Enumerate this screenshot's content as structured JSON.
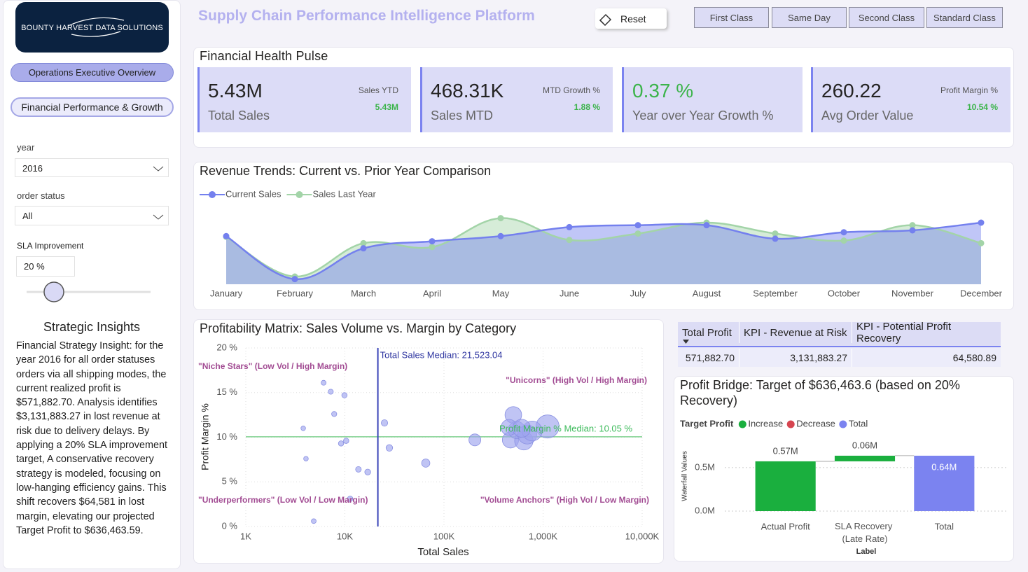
{
  "sidebar": {
    "logo": "BOUNTY HARVEST DATA SOLUTIONS",
    "nav": [
      "Operations Executive Overview",
      "Financial Performance & Growth"
    ],
    "filters": [
      {
        "label": "year",
        "value": "2016"
      },
      {
        "label": "order status",
        "value": "All"
      }
    ],
    "sla": {
      "label": "SLA Improvement",
      "value": "20 %"
    },
    "insights_title": "Strategic Insights",
    "insights_text": "Financial Strategy Insight: for the year 2016 for all order statuses orders via all shipping modes, the current realized profit is $571,882.70. Analysis identifies $3,131,883.27 in lost revenue at risk due to delivery delays. By applying a 20% SLA improvement target, A conservative recovery strategy is modeled, focusing on low-hanging efficiency gains. This shift recovers $64,581 in lost margin, elevating our projected Target Profit to $636,463.59."
  },
  "header": {
    "title": "Supply Chain Performance Intelligence Platform",
    "reset": "Reset",
    "ship_modes": [
      "First Class",
      "Same Day",
      "Second Class",
      "Standard Class"
    ]
  },
  "kpi_panel": {
    "title": "Financial Health Pulse",
    "cards": [
      {
        "value": "5.43M",
        "label": "Total Sales",
        "sub_label": "Sales YTD",
        "sub_value": "5.43M"
      },
      {
        "value": "468.31K",
        "label": "Sales MTD",
        "sub_label": "MTD Growth %",
        "sub_value": "1.88 %"
      },
      {
        "value": "0.37 %",
        "label": "Year over Year Growth %"
      },
      {
        "value": "260.22",
        "label": "Avg Order Value",
        "sub_label": "Profit Margin %",
        "sub_value": "10.54 %"
      }
    ]
  },
  "table": {
    "header": [
      "Total Profit",
      "KPI - Revenue at Risk",
      "KPI - Potential Profit Recovery"
    ],
    "rows": [
      [
        "571,882.70",
        "3,131,883.27",
        "64,580.89"
      ]
    ]
  },
  "chart_data": [
    {
      "type": "line",
      "title": "Revenue Trends: Current vs. Prior Year Comparison",
      "categories": [
        "January",
        "February",
        "March",
        "April",
        "May",
        "June",
        "July",
        "August",
        "September",
        "October",
        "November",
        "December"
      ],
      "series": [
        {
          "name": "Current Sales",
          "color": "#7480ee",
          "values": [
            435000,
            368000,
            416000,
            427000,
            435000,
            449000,
            452000,
            452000,
            431000,
            441000,
            444000,
            456000
          ]
        },
        {
          "name": "Sales Last Year",
          "color": "#a3d4a8",
          "values": [
            434000,
            372000,
            424000,
            418000,
            463000,
            429000,
            439000,
            456000,
            439000,
            428000,
            452000,
            424000
          ]
        }
      ],
      "ylim": [
        360000,
        480000
      ],
      "legend": "top-left"
    },
    {
      "type": "scatter",
      "title": "Profitability Matrix: Sales Volume vs. Margin by Category",
      "x_label": "Total Sales",
      "y_label": "Profit Margin %",
      "x_log": true,
      "color": "#9ea5ee",
      "x": [
        6100,
        7200,
        9900,
        7800,
        3800,
        25100,
        10300,
        9150,
        28100,
        4050,
        13700,
        17000,
        65500,
        11300,
        4850,
        205000,
        501000,
        1110000,
        469000,
        640000,
        543000,
        693000,
        454000,
        777000,
        608000
      ],
      "y": [
        16.1,
        15.1,
        14.7,
        12.6,
        11.0,
        11.6,
        9.6,
        9.3,
        8.8,
        7.6,
        6.4,
        6.1,
        7.1,
        3.1,
        0.6,
        9.7,
        12.5,
        11.2,
        9.7,
        9.6,
        10.8,
        10.3,
        11.1,
        10.7,
        11.0
      ],
      "xlim": [
        1000,
        10000000
      ],
      "xticks": [
        {
          "value": 1000,
          "label": "1K"
        },
        {
          "value": 10000,
          "label": "10K"
        },
        {
          "value": 100000,
          "label": "100K"
        },
        {
          "value": 1000000,
          "label": "1,000K"
        },
        {
          "value": 10000000,
          "label": "10,000K"
        }
      ],
      "ylim": [
        0,
        20
      ],
      "yticks": [
        {
          "value": 0,
          "label": "0 %"
        },
        {
          "value": 5,
          "label": "5 %"
        },
        {
          "value": 10,
          "label": "10 %"
        },
        {
          "value": 15,
          "label": "15 %"
        },
        {
          "value": 20,
          "label": "20 %"
        }
      ],
      "grid": true,
      "x_median": {
        "value": 21523.04,
        "label": "Total Sales Median: 21,523.04"
      },
      "y_median": {
        "value": 10.05,
        "label": "Profit Margin % Median: 10.05 %"
      },
      "annotations": [
        "\"Niche Stars\" (Low Vol / High Margin)",
        "\"Unicorns\" (High Vol / High Margin)",
        "\"Underperformers\" (Low Vol / Low Margin)",
        "\"Volume Anchors\" (High Vol / Low Margin)"
      ]
    },
    {
      "type": "waterfall",
      "title": "Profit Bridge: Target of $636,463.6 (based on 20% Recovery)",
      "legend_title": "Target Profit",
      "legend": [
        {
          "name": "Increase",
          "color": "#1aaf3e"
        },
        {
          "name": "Decrease",
          "color": "#d64550"
        },
        {
          "name": "Total",
          "color": "#7b83f0"
        }
      ],
      "categories": [
        "Actual Profit",
        "SLA Recovery (Late Rate)",
        "Total"
      ],
      "values": [
        571882.7,
        64580.89,
        636463.6
      ],
      "value_labels": [
        "0.57M",
        "0.06M",
        "0.64M"
      ],
      "colors": [
        "#1aaf3e",
        "#1aaf3e",
        "#7b83f0"
      ],
      "ylim": [
        0,
        700000
      ],
      "yticks": [
        {
          "value": 0,
          "label": "0.0M"
        },
        {
          "value": 500000,
          "label": "0.5M"
        }
      ],
      "y_label": "Waterfall Values",
      "x_label": "Label",
      "grid": true
    }
  ]
}
